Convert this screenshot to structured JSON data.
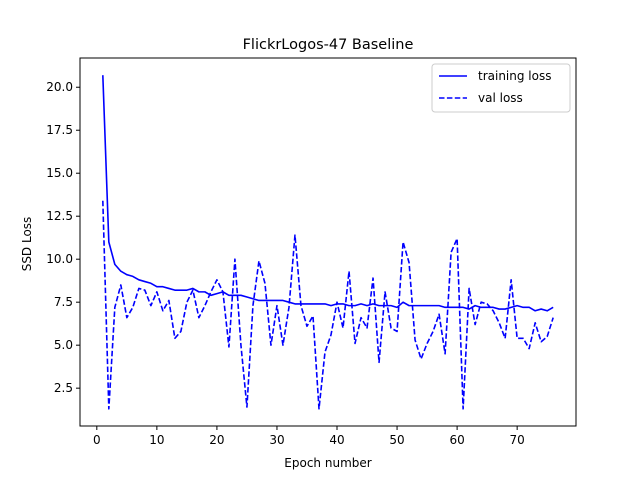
{
  "chart_data": {
    "type": "line",
    "title": "FlickrLogos-47 Baseline",
    "xlabel": "Epoch number",
    "ylabel": "SSD Loss",
    "xlim": [
      -2.8,
      79.8
    ],
    "ylim": [
      0.3,
      21.7
    ],
    "grid": false,
    "legend_position": "top-right",
    "x_ticks": [
      0,
      10,
      20,
      30,
      40,
      50,
      60,
      70
    ],
    "x_tick_labels": [
      "0",
      "10",
      "20",
      "30",
      "40",
      "50",
      "60",
      "70"
    ],
    "y_ticks": [
      2.5,
      5.0,
      7.5,
      10.0,
      12.5,
      15.0,
      17.5,
      20.0
    ],
    "y_tick_labels": [
      "2.5",
      "5.0",
      "7.5",
      "10.0",
      "12.5",
      "15.0",
      "17.5",
      "20.0"
    ],
    "x": [
      1,
      2,
      3,
      4,
      5,
      6,
      7,
      8,
      9,
      10,
      11,
      12,
      13,
      14,
      15,
      16,
      17,
      18,
      19,
      20,
      21,
      22,
      23,
      24,
      25,
      26,
      27,
      28,
      29,
      30,
      31,
      32,
      33,
      34,
      35,
      36,
      37,
      38,
      39,
      40,
      41,
      42,
      43,
      44,
      45,
      46,
      47,
      48,
      49,
      50,
      51,
      52,
      53,
      54,
      55,
      56,
      57,
      58,
      59,
      60,
      61,
      62,
      63,
      64,
      65,
      66,
      67,
      68,
      69,
      70,
      71,
      72,
      73,
      74,
      75,
      76
    ],
    "series": [
      {
        "name": "training loss",
        "color": "#0000ff",
        "linestyle": "solid",
        "values": [
          20.7,
          11.0,
          9.7,
          9.3,
          9.1,
          9.0,
          8.8,
          8.7,
          8.6,
          8.4,
          8.4,
          8.3,
          8.2,
          8.2,
          8.2,
          8.3,
          8.1,
          8.1,
          7.9,
          8.0,
          8.1,
          7.9,
          7.9,
          7.9,
          7.8,
          7.7,
          7.6,
          7.6,
          7.6,
          7.6,
          7.6,
          7.5,
          7.4,
          7.4,
          7.4,
          7.4,
          7.4,
          7.4,
          7.3,
          7.4,
          7.4,
          7.3,
          7.3,
          7.4,
          7.3,
          7.4,
          7.3,
          7.3,
          7.3,
          7.2,
          7.5,
          7.3,
          7.3,
          7.3,
          7.3,
          7.3,
          7.3,
          7.2,
          7.2,
          7.2,
          7.2,
          7.1,
          7.3,
          7.2,
          7.2,
          7.2,
          7.1,
          7.1,
          7.2,
          7.3,
          7.2,
          7.2,
          7.0,
          7.1,
          7.0,
          7.2
        ]
      },
      {
        "name": "val loss",
        "color": "#0000ff",
        "linestyle": "dashed",
        "values": [
          13.4,
          1.3,
          7.2,
          8.5,
          6.6,
          7.2,
          8.3,
          8.2,
          7.3,
          8.1,
          7.0,
          7.6,
          5.4,
          5.8,
          7.5,
          8.2,
          6.6,
          7.3,
          8.1,
          8.8,
          8.1,
          4.9,
          10.0,
          5.0,
          1.4,
          7.3,
          9.9,
          8.6,
          5.0,
          7.3,
          5.0,
          7.2,
          11.4,
          7.3,
          6.1,
          6.7,
          1.3,
          4.6,
          5.6,
          7.5,
          6.0,
          9.3,
          5.1,
          6.6,
          6.0,
          8.9,
          4.0,
          8.1,
          6.0,
          5.8,
          11.0,
          9.8,
          5.3,
          4.2,
          5.1,
          5.8,
          6.8,
          4.5,
          10.4,
          11.2,
          1.3,
          8.3,
          6.2,
          7.5,
          7.4,
          7.0,
          6.3,
          5.4,
          8.8,
          5.4,
          5.4,
          4.8,
          6.3,
          5.2,
          5.5,
          6.6
        ]
      }
    ]
  }
}
